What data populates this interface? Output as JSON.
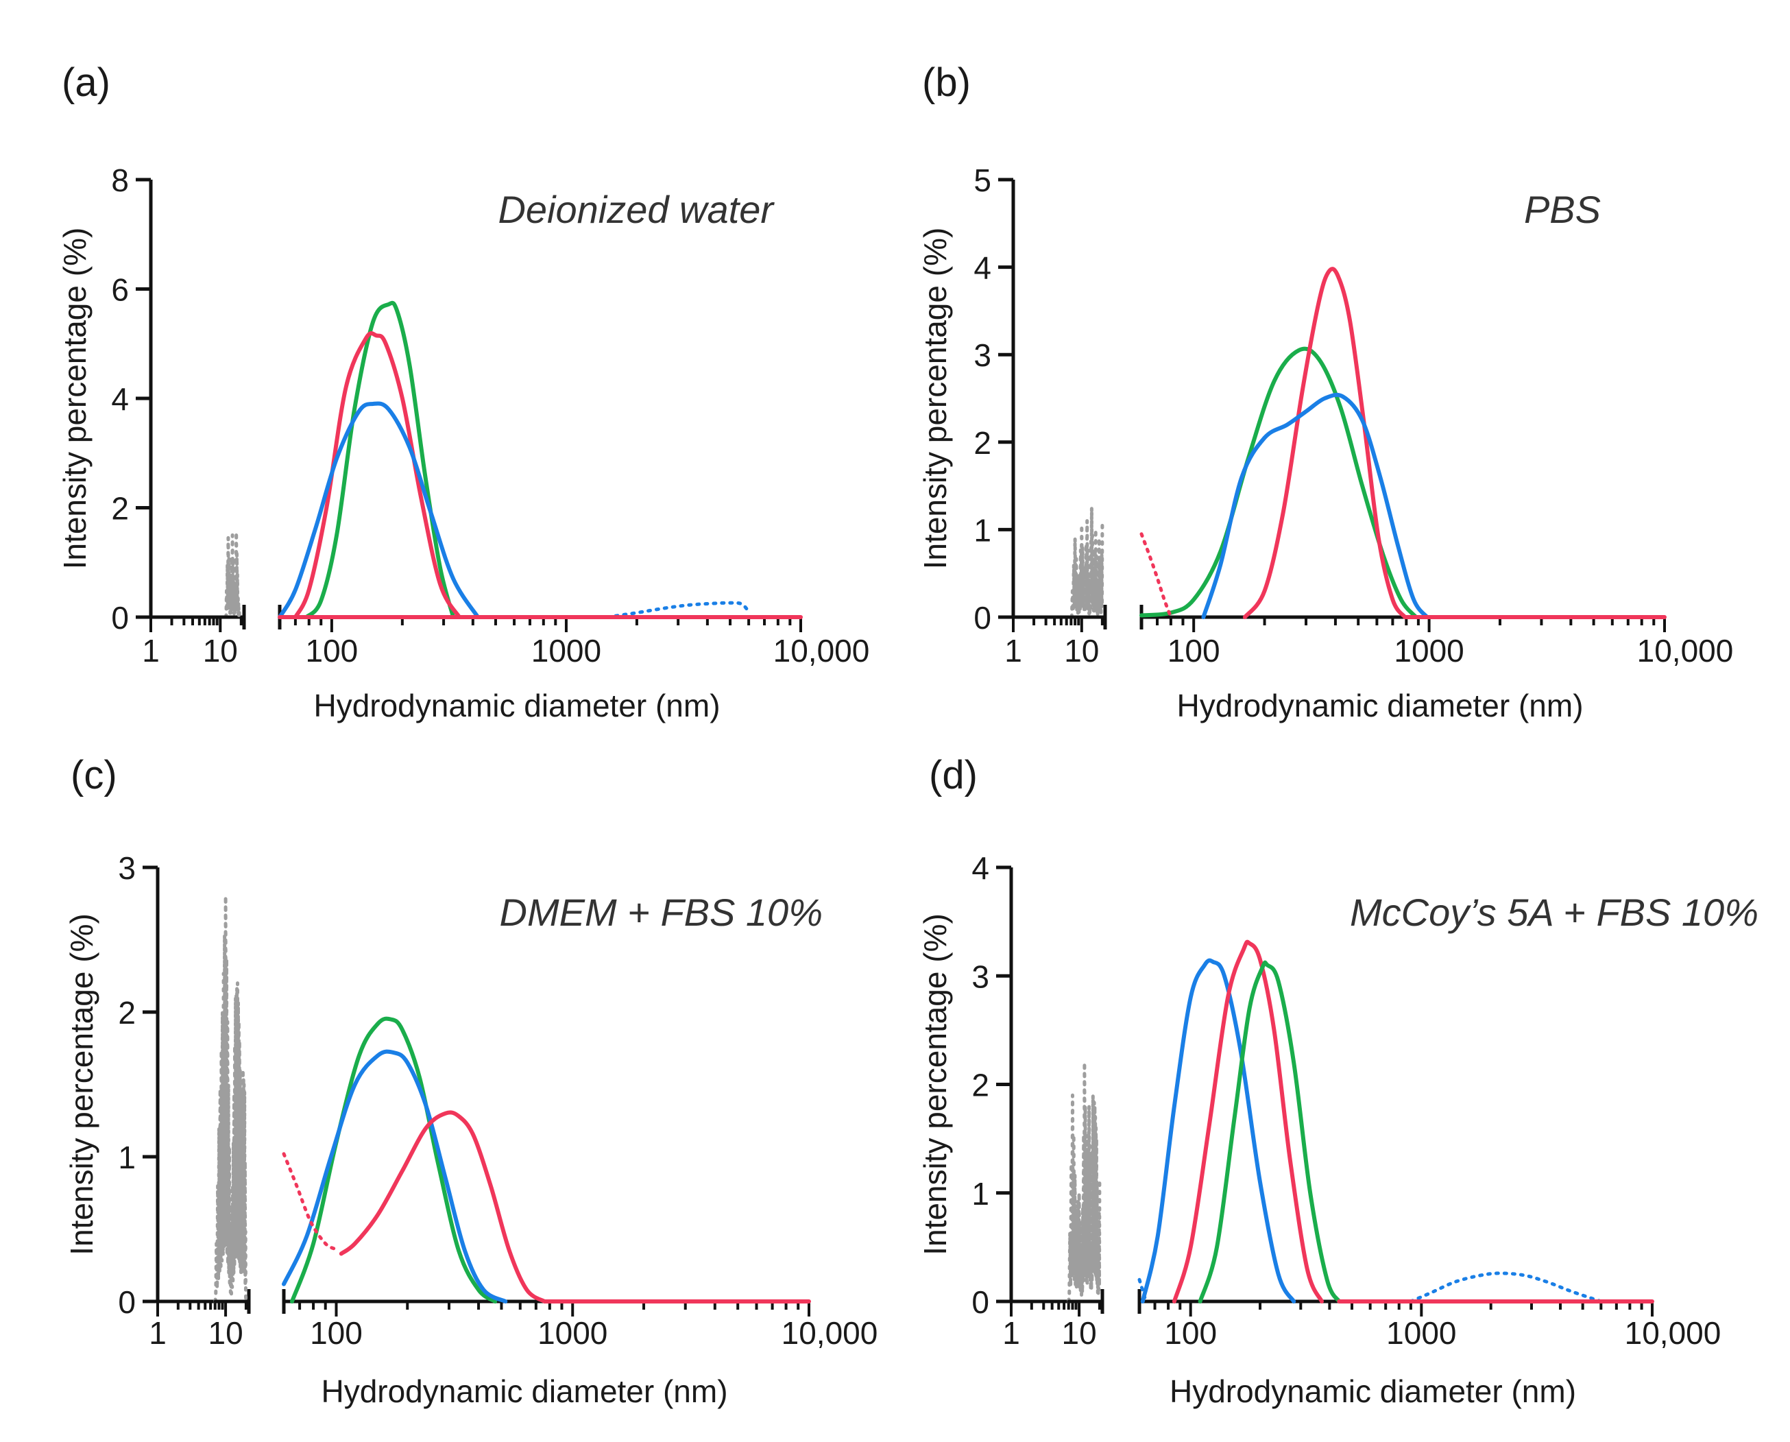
{
  "colors": {
    "green": "#1aad4b",
    "red": "#f0365a",
    "blue": "#1a7fe6",
    "gray": "#9e9e9e",
    "axis": "#111111"
  },
  "chart_data": [
    {
      "type": "line",
      "panel_label": "(a)",
      "title": "Deionized water",
      "xlabel": "Hydrodynamic diameter (nm)",
      "ylabel": "Intensity percentage (%)",
      "xscale": "log",
      "x_ticks": [
        "1",
        "10",
        "100",
        "1000",
        "10,000"
      ],
      "y_ticks": [
        "0",
        "2",
        "4",
        "6",
        "8"
      ],
      "ylim": [
        0,
        8
      ],
      "series": [
        {
          "name": "green",
          "color": "green",
          "style": "solid",
          "x": [
            78,
            90,
            105,
            125,
            150,
            175,
            190,
            215,
            250,
            290,
            330
          ],
          "y": [
            0,
            0.3,
            1.5,
            3.8,
            5.4,
            5.72,
            5.6,
            4.6,
            2.6,
            0.9,
            0
          ]
        },
        {
          "name": "red",
          "color": "red",
          "style": "solid",
          "x": [
            70,
            80,
            95,
            115,
            140,
            155,
            170,
            200,
            240,
            290,
            350
          ],
          "y": [
            0,
            0.5,
            2,
            4.2,
            5.1,
            5.15,
            5,
            4,
            2.2,
            0.6,
            0
          ]
        },
        {
          "name": "blue",
          "color": "blue",
          "style": "solid",
          "x": [
            60,
            70,
            85,
            105,
            130,
            150,
            175,
            215,
            265,
            330,
            420
          ],
          "y": [
            0,
            0.5,
            1.6,
            2.9,
            3.75,
            3.9,
            3.8,
            3.1,
            1.9,
            0.7,
            0
          ]
        },
        {
          "name": "blue dotted",
          "color": "blue",
          "style": "dotted",
          "x": [
            1500,
            2000,
            2600,
            3300,
            4200,
            5000,
            5600,
            6000
          ],
          "y": [
            0,
            0.08,
            0.16,
            0.22,
            0.25,
            0.26,
            0.24,
            0.1
          ]
        },
        {
          "name": "gray dotted",
          "color": "gray",
          "style": "dotted",
          "x": [
            12,
            13,
            14,
            15,
            16,
            17,
            18,
            19
          ],
          "y": [
            0,
            1.45,
            0.3,
            1.5,
            0.2,
            1.55,
            0.4,
            0
          ],
          "dense": true
        },
        {
          "name": "baseline",
          "color": "red",
          "style": "solid",
          "x": [
            60,
            10000
          ],
          "y": [
            0,
            0
          ]
        },
        {
          "name": "left baseline",
          "color": "axis",
          "style": "dotted",
          "x": [
            1,
            20
          ],
          "y": [
            0,
            0
          ]
        }
      ]
    },
    {
      "type": "line",
      "panel_label": "(b)",
      "title": "PBS",
      "xlabel": "Hydrodynamic diameter (nm)",
      "ylabel": "Intensity percentage (%)",
      "xscale": "log",
      "x_ticks": [
        "1",
        "10",
        "100",
        "1000",
        "10,000"
      ],
      "y_ticks": [
        "0",
        "1",
        "2",
        "3",
        "4",
        "5"
      ],
      "ylim": [
        0,
        5
      ],
      "series": [
        {
          "name": "green",
          "color": "green",
          "style": "solid",
          "x": [
            60,
            80,
            100,
            130,
            170,
            220,
            280,
            340,
            420,
            520,
            640,
            760,
            880
          ],
          "y": [
            0.02,
            0.05,
            0.2,
            0.75,
            1.8,
            2.7,
            3.05,
            2.95,
            2.4,
            1.5,
            0.7,
            0.2,
            0
          ]
        },
        {
          "name": "red",
          "color": "red",
          "style": "solid",
          "x": [
            165,
            200,
            240,
            290,
            340,
            375,
            410,
            460,
            530,
            610,
            700,
            790
          ],
          "y": [
            0,
            0.3,
            1.2,
            2.6,
            3.6,
            3.95,
            3.9,
            3.4,
            2.2,
            0.9,
            0.2,
            0
          ]
        },
        {
          "name": "blue",
          "color": "blue",
          "style": "solid",
          "x": [
            110,
            130,
            160,
            200,
            250,
            300,
            360,
            430,
            520,
            620,
            740,
            860,
            980
          ],
          "y": [
            0,
            0.6,
            1.6,
            2.05,
            2.2,
            2.35,
            2.5,
            2.52,
            2.25,
            1.6,
            0.8,
            0.2,
            0
          ]
        },
        {
          "name": "red dotted",
          "color": "red",
          "style": "dotted",
          "x": [
            60,
            65,
            70,
            75,
            80
          ],
          "y": [
            0.95,
            0.7,
            0.45,
            0.2,
            0
          ]
        },
        {
          "name": "gray dotted",
          "color": "gray",
          "style": "dotted",
          "x": [
            7,
            8,
            9,
            10,
            11,
            12,
            13,
            14,
            15,
            16,
            17,
            18,
            19,
            20
          ],
          "y": [
            0,
            0.9,
            0.2,
            1.05,
            0.3,
            1.1,
            0.1,
            1.25,
            0.3,
            1.0,
            0.1,
            0.9,
            0.2,
            1.05
          ],
          "dense": true
        },
        {
          "name": "baseline",
          "color": "red",
          "style": "solid",
          "x": [
            800,
            10000
          ],
          "y": [
            0,
            0
          ]
        },
        {
          "name": "left baseline",
          "color": "axis",
          "style": "dotted",
          "x": [
            1,
            20
          ],
          "y": [
            0,
            0
          ]
        }
      ]
    },
    {
      "type": "line",
      "panel_label": "(c)",
      "title": "DMEM + FBS 10%",
      "xlabel": "Hydrodynamic diameter (nm)",
      "ylabel": "Intensity percentage (%)",
      "xscale": "log",
      "x_ticks": [
        "1",
        "10",
        "100",
        "1000",
        "10,000"
      ],
      "y_ticks": [
        "0",
        "1",
        "2",
        "3"
      ],
      "ylim": [
        0,
        3
      ],
      "series": [
        {
          "name": "green",
          "color": "green",
          "style": "solid",
          "x": [
            65,
            80,
            100,
            125,
            150,
            170,
            190,
            225,
            270,
            330,
            400,
            470
          ],
          "y": [
            0,
            0.4,
            1.1,
            1.7,
            1.92,
            1.95,
            1.88,
            1.55,
            0.95,
            0.35,
            0.08,
            0
          ]
        },
        {
          "name": "blue",
          "color": "blue",
          "style": "solid",
          "x": [
            60,
            75,
            95,
            120,
            150,
            175,
            200,
            240,
            290,
            350,
            420,
            520
          ],
          "y": [
            0.12,
            0.45,
            1.0,
            1.5,
            1.7,
            1.72,
            1.65,
            1.35,
            0.85,
            0.35,
            0.08,
            0
          ]
        },
        {
          "name": "red",
          "color": "red",
          "style": "solid",
          "x": [
            105,
            120,
            150,
            190,
            240,
            290,
            330,
            380,
            450,
            540,
            640,
            760
          ],
          "y": [
            0.33,
            0.4,
            0.6,
            0.9,
            1.2,
            1.3,
            1.28,
            1.15,
            0.8,
            0.35,
            0.08,
            0
          ]
        },
        {
          "name": "red dotted",
          "color": "red",
          "style": "dotted",
          "x": [
            60,
            68,
            78,
            90,
            100
          ],
          "y": [
            1.02,
            0.8,
            0.55,
            0.4,
            0.36
          ]
        },
        {
          "name": "gray dotted",
          "color": "gray",
          "style": "dotted",
          "x": [
            7,
            8,
            9,
            10,
            11,
            12,
            13,
            14,
            15,
            16,
            17,
            18,
            19,
            20
          ],
          "y": [
            0,
            1.2,
            2.0,
            2.8,
            1.5,
            0.2,
            1.1,
            2.1,
            2.2,
            1.8,
            1.2,
            1.6,
            1.45,
            0
          ],
          "dense": true
        },
        {
          "name": "baseline",
          "color": "red",
          "style": "solid",
          "x": [
            760,
            10000
          ],
          "y": [
            0,
            0
          ]
        },
        {
          "name": "left baseline",
          "color": "axis",
          "style": "dotted",
          "x": [
            1,
            20
          ],
          "y": [
            0,
            0
          ]
        }
      ]
    },
    {
      "type": "line",
      "panel_label": "(d)",
      "title": "McCoy’s 5A + FBS 10%",
      "xlabel": "Hydrodynamic diameter (nm)",
      "ylabel": "Intensity percentage (%)",
      "xscale": "log",
      "x_ticks": [
        "1",
        "10",
        "100",
        "1000",
        "10,000"
      ],
      "y_ticks": [
        "0",
        "1",
        "2",
        "3",
        "4"
      ],
      "ylim": [
        0,
        4
      ],
      "series": [
        {
          "name": "blue",
          "color": "blue",
          "style": "solid",
          "x": [
            62,
            72,
            85,
            100,
            115,
            125,
            140,
            165,
            200,
            240,
            280
          ],
          "y": [
            0,
            0.6,
            1.8,
            2.8,
            3.1,
            3.13,
            3.0,
            2.3,
            1.1,
            0.25,
            0
          ]
        },
        {
          "name": "red",
          "color": "red",
          "style": "solid",
          "x": [
            85,
            100,
            120,
            145,
            170,
            180,
            200,
            230,
            270,
            320,
            370
          ],
          "y": [
            0,
            0.5,
            1.6,
            2.8,
            3.25,
            3.3,
            3.15,
            2.5,
            1.3,
            0.3,
            0
          ]
        },
        {
          "name": "green",
          "color": "green",
          "style": "solid",
          "x": [
            110,
            130,
            155,
            180,
            205,
            215,
            240,
            280,
            330,
            390,
            440
          ],
          "y": [
            0,
            0.5,
            1.7,
            2.7,
            3.08,
            3.1,
            2.95,
            2.2,
            1.0,
            0.2,
            0
          ]
        },
        {
          "name": "blue dotted",
          "color": "blue",
          "style": "dotted",
          "x": [
            900,
            1100,
            1400,
            1800,
            2200,
            2800,
            3500,
            4500,
            6000
          ],
          "y": [
            0,
            0.08,
            0.18,
            0.24,
            0.26,
            0.24,
            0.18,
            0.09,
            0
          ]
        },
        {
          "name": "blue dotted small",
          "color": "blue",
          "style": "dotted",
          "x": [
            60,
            62,
            64
          ],
          "y": [
            0.2,
            0.1,
            0
          ]
        },
        {
          "name": "gray dotted",
          "color": "gray",
          "style": "dotted",
          "x": [
            7,
            8,
            9,
            10,
            11,
            12,
            13,
            14,
            15,
            16,
            17,
            18,
            19,
            20
          ],
          "y": [
            0,
            1.9,
            0.8,
            1.0,
            0.2,
            2.2,
            1.0,
            1.8,
            0.5,
            1.9,
            1.8,
            1.5,
            0.3,
            1.1
          ],
          "dense": true
        },
        {
          "name": "baseline",
          "color": "red",
          "style": "solid",
          "x": [
            440,
            10000
          ],
          "y": [
            0,
            0
          ]
        },
        {
          "name": "left baseline",
          "color": "axis",
          "style": "dotted",
          "x": [
            1,
            20
          ],
          "y": [
            0,
            0
          ]
        }
      ]
    }
  ]
}
